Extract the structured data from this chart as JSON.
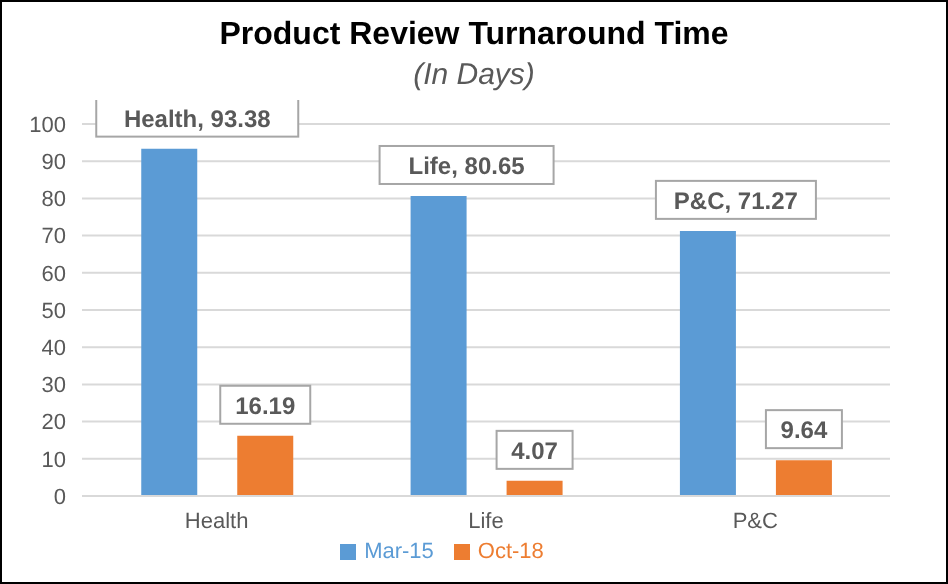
{
  "chart_data": {
    "type": "bar",
    "title": "Product Review Turnaround Time",
    "subtitle": "(In Days)",
    "categories": [
      "Health",
      "Life",
      "P&C"
    ],
    "series": [
      {
        "name": "Mar-15",
        "color": "#5b9bd5",
        "values": [
          93.38,
          80.65,
          71.27
        ],
        "value_labels": [
          "Health, 93.38",
          "Life, 80.65",
          "P&C, 71.27"
        ]
      },
      {
        "name": "Oct-18",
        "color": "#ed7d31",
        "values": [
          16.19,
          4.07,
          9.64
        ],
        "value_labels": [
          "16.19",
          "4.07",
          "9.64"
        ]
      }
    ],
    "ylim": [
      0,
      100
    ],
    "yticks": [
      0,
      10,
      20,
      30,
      40,
      50,
      60,
      70,
      80,
      90,
      100
    ],
    "grid": "y",
    "legend": "bottom"
  }
}
